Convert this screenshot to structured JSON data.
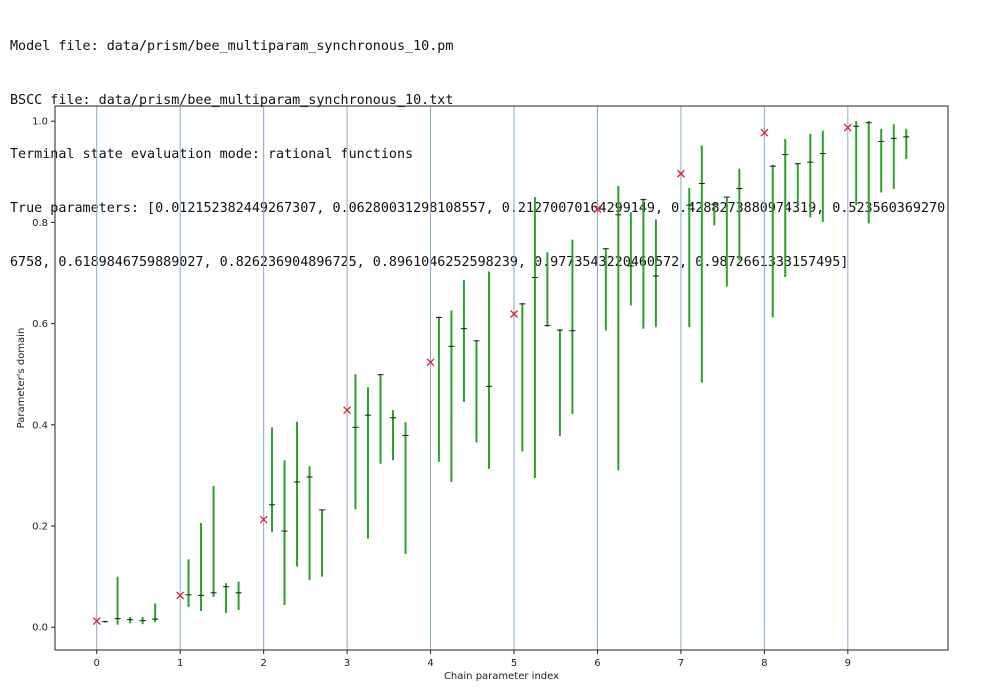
{
  "header": {
    "model_file": "Model file: data/prism/bee_multiparam_synchronous_10.pm",
    "bscc_file": "BSCC file: data/prism/bee_multiparam_synchronous_10.txt",
    "eval_mode": "Terminal state evaluation mode: rational functions",
    "true_params_line1": "True parameters: [0.012152382449267307, 0.06280031298108557, 0.21270070164299149, 0.4288273880974319, 0.523560369270",
    "true_params_line2": "6758, 0.6189846759889027, 0.826236904896725, 0.8961046252598239, 0.9773543220460572, 0.9872661333157495]"
  },
  "chart_data": {
    "type": "scatter",
    "xlabel": "Chain parameter index",
    "ylabel": "Parameter's domain",
    "xlim": [
      -0.5,
      10.2
    ],
    "ylim": [
      -0.045,
      1.03
    ],
    "xticks": [
      0,
      1,
      2,
      3,
      4,
      5,
      6,
      7,
      8,
      9
    ],
    "yticks": [
      0.0,
      0.2,
      0.4,
      0.6,
      0.8,
      1.0
    ],
    "ytick_labels": [
      "0.0",
      "0.2",
      "0.4",
      "0.6",
      "0.8",
      "1.0"
    ],
    "colors": {
      "true_marker": "#d62728",
      "interval": "#2ca02c",
      "vline": "#88a9cf",
      "axis": "#222222"
    },
    "true_parameters": {
      "x": [
        0,
        1,
        2,
        3,
        4,
        5,
        6,
        7,
        8,
        9
      ],
      "y": [
        0.012152382449267307,
        0.06280031298108557,
        0.21270070164299149,
        0.4288273880974319,
        0.5235603692706758,
        0.6189846759889027,
        0.826236904896725,
        0.8961046252598239,
        0.9773543220460572,
        0.9872661333157495
      ]
    },
    "intervals": [
      {
        "x": 0.1,
        "low": 0.009,
        "high": 0.013,
        "mid": 0.011
      },
      {
        "x": 0.25,
        "low": 0.005,
        "high": 0.1,
        "mid": 0.017
      },
      {
        "x": 0.4,
        "low": 0.008,
        "high": 0.02,
        "mid": 0.015
      },
      {
        "x": 0.55,
        "low": 0.006,
        "high": 0.02,
        "mid": 0.013
      },
      {
        "x": 0.7,
        "low": 0.01,
        "high": 0.047,
        "mid": 0.016
      },
      {
        "x": 1.1,
        "low": 0.04,
        "high": 0.134,
        "mid": 0.064
      },
      {
        "x": 1.25,
        "low": 0.032,
        "high": 0.206,
        "mid": 0.063
      },
      {
        "x": 1.4,
        "low": 0.06,
        "high": 0.279,
        "mid": 0.068
      },
      {
        "x": 1.55,
        "low": 0.028,
        "high": 0.087,
        "mid": 0.08
      },
      {
        "x": 1.7,
        "low": 0.034,
        "high": 0.09,
        "mid": 0.068
      },
      {
        "x": 2.1,
        "low": 0.188,
        "high": 0.395,
        "mid": 0.242
      },
      {
        "x": 2.25,
        "low": 0.044,
        "high": 0.33,
        "mid": 0.19
      },
      {
        "x": 2.4,
        "low": 0.12,
        "high": 0.406,
        "mid": 0.287
      },
      {
        "x": 2.55,
        "low": 0.093,
        "high": 0.318,
        "mid": 0.297
      },
      {
        "x": 2.7,
        "low": 0.1,
        "high": 0.232,
        "mid": 0.232
      },
      {
        "x": 3.1,
        "low": 0.233,
        "high": 0.5,
        "mid": 0.395
      },
      {
        "x": 3.25,
        "low": 0.175,
        "high": 0.474,
        "mid": 0.419
      },
      {
        "x": 3.4,
        "low": 0.323,
        "high": 0.5,
        "mid": 0.499
      },
      {
        "x": 3.55,
        "low": 0.33,
        "high": 0.429,
        "mid": 0.414
      },
      {
        "x": 3.7,
        "low": 0.145,
        "high": 0.405,
        "mid": 0.379
      },
      {
        "x": 4.1,
        "low": 0.327,
        "high": 0.614,
        "mid": 0.612
      },
      {
        "x": 4.25,
        "low": 0.287,
        "high": 0.626,
        "mid": 0.555
      },
      {
        "x": 4.4,
        "low": 0.445,
        "high": 0.686,
        "mid": 0.59
      },
      {
        "x": 4.55,
        "low": 0.365,
        "high": 0.566,
        "mid": 0.566
      },
      {
        "x": 4.7,
        "low": 0.313,
        "high": 0.703,
        "mid": 0.476
      },
      {
        "x": 5.1,
        "low": 0.347,
        "high": 0.641,
        "mid": 0.639
      },
      {
        "x": 5.25,
        "low": 0.295,
        "high": 0.85,
        "mid": 0.691
      },
      {
        "x": 5.4,
        "low": 0.594,
        "high": 0.741,
        "mid": 0.596
      },
      {
        "x": 5.55,
        "low": 0.378,
        "high": 0.589,
        "mid": 0.587
      },
      {
        "x": 5.7,
        "low": 0.421,
        "high": 0.766,
        "mid": 0.586
      },
      {
        "x": 6.1,
        "low": 0.586,
        "high": 0.749,
        "mid": 0.748
      },
      {
        "x": 6.25,
        "low": 0.31,
        "high": 0.872,
        "mid": 0.815
      },
      {
        "x": 6.4,
        "low": 0.636,
        "high": 0.82,
        "mid": 0.714
      },
      {
        "x": 6.55,
        "low": 0.59,
        "high": 0.847,
        "mid": 0.845
      },
      {
        "x": 6.7,
        "low": 0.593,
        "high": 0.806,
        "mid": 0.694
      },
      {
        "x": 7.1,
        "low": 0.593,
        "high": 0.868,
        "mid": 0.834
      },
      {
        "x": 7.25,
        "low": 0.483,
        "high": 0.952,
        "mid": 0.877
      },
      {
        "x": 7.4,
        "low": 0.794,
        "high": 0.838,
        "mid": 0.836
      },
      {
        "x": 7.55,
        "low": 0.673,
        "high": 0.85,
        "mid": 0.85
      },
      {
        "x": 7.7,
        "low": 0.725,
        "high": 0.906,
        "mid": 0.867
      },
      {
        "x": 8.1,
        "low": 0.612,
        "high": 0.914,
        "mid": 0.911
      },
      {
        "x": 8.25,
        "low": 0.692,
        "high": 0.965,
        "mid": 0.934
      },
      {
        "x": 8.4,
        "low": 0.838,
        "high": 0.917,
        "mid": 0.916
      },
      {
        "x": 8.55,
        "low": 0.81,
        "high": 0.975,
        "mid": 0.919
      },
      {
        "x": 8.7,
        "low": 0.801,
        "high": 0.981,
        "mid": 0.936
      },
      {
        "x": 9.1,
        "low": 0.834,
        "high": 1.0,
        "mid": 0.99
      },
      {
        "x": 9.25,
        "low": 0.798,
        "high": 1.0,
        "mid": 0.997
      },
      {
        "x": 9.4,
        "low": 0.859,
        "high": 0.985,
        "mid": 0.96
      },
      {
        "x": 9.55,
        "low": 0.866,
        "high": 0.994,
        "mid": 0.966
      },
      {
        "x": 9.7,
        "low": 0.925,
        "high": 0.985,
        "mid": 0.969
      }
    ]
  }
}
